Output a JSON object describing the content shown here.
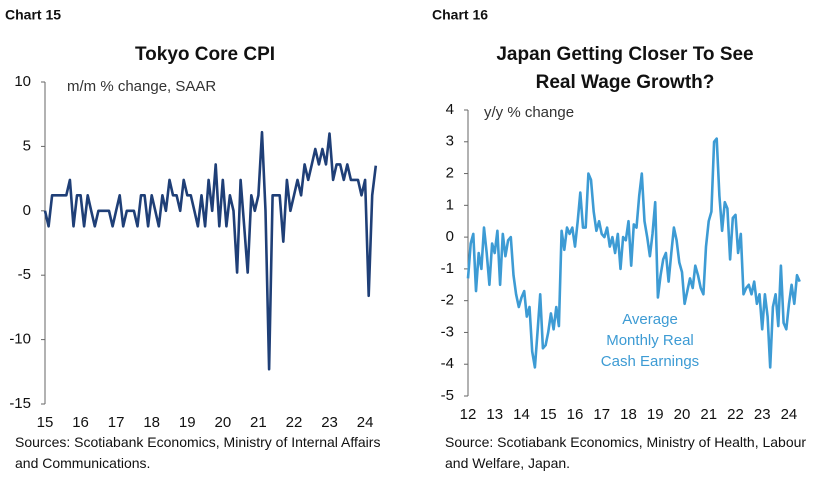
{
  "chart_data": [
    {
      "type": "line",
      "label": "Chart 15",
      "title": [
        "Tokyo Core CPI"
      ],
      "y_label": "m/m % change, SAAR",
      "source": "Sources: Scotiabank Economics, Ministry of Internal Affairs and Communications.",
      "color": "#1f3f77",
      "xlim": [
        15,
        24.7
      ],
      "xticks": [
        15,
        16,
        17,
        18,
        19,
        20,
        21,
        22,
        23,
        24
      ],
      "ylim": [
        -15,
        10
      ],
      "yticks": [
        -15,
        -10,
        -5,
        0,
        5,
        10
      ],
      "x": [
        15.0,
        15.1,
        15.2,
        15.3,
        15.4,
        15.5,
        15.6,
        15.7,
        15.8,
        15.9,
        16.0,
        16.1,
        16.2,
        16.3,
        16.4,
        16.5,
        16.6,
        16.7,
        16.8,
        16.9,
        17.0,
        17.1,
        17.2,
        17.3,
        17.4,
        17.5,
        17.6,
        17.7,
        17.8,
        17.9,
        18.0,
        18.1,
        18.2,
        18.3,
        18.4,
        18.5,
        18.6,
        18.7,
        18.8,
        18.9,
        19.0,
        19.1,
        19.2,
        19.3,
        19.4,
        19.5,
        19.6,
        19.7,
        19.8,
        19.9,
        20.0,
        20.1,
        20.2,
        20.3,
        20.4,
        20.5,
        20.6,
        20.7,
        20.8,
        20.9,
        21.0,
        21.1,
        21.2,
        21.3,
        21.4,
        21.5,
        21.6,
        21.7,
        21.8,
        21.9,
        22.0,
        22.1,
        22.2,
        22.3,
        22.4,
        22.5,
        22.6,
        22.7,
        22.8,
        22.9,
        23.0,
        23.1,
        23.2,
        23.3,
        23.4,
        23.5,
        23.6,
        23.7,
        23.8,
        23.9,
        24.0,
        24.1,
        24.2,
        24.3
      ],
      "values": [
        0,
        -1.2,
        1.2,
        1.2,
        1.2,
        1.2,
        1.2,
        2.4,
        -1.2,
        1.2,
        1.2,
        -1.2,
        1.2,
        0,
        -1.2,
        0,
        0,
        0,
        0,
        -1.2,
        0,
        1.2,
        -1.2,
        0,
        0,
        0,
        -1.2,
        1.2,
        1.2,
        -1.2,
        1.2,
        0,
        -1.2,
        1.2,
        0,
        2.4,
        1.2,
        1.2,
        0,
        2.4,
        1.2,
        1.2,
        0,
        -1.2,
        1.2,
        -1.2,
        2.4,
        0,
        3.6,
        -1.2,
        2.4,
        -1.2,
        1.2,
        0,
        -4.8,
        2.4,
        -1.2,
        -4.8,
        1.2,
        0,
        1.2,
        6.1,
        0,
        -12.3,
        1.2,
        1.2,
        1.2,
        -2.4,
        2.4,
        0,
        1.2,
        2.4,
        1.2,
        3.6,
        2.4,
        3.6,
        4.8,
        3.6,
        4.8,
        3.6,
        6.0,
        2.4,
        3.6,
        3.6,
        2.4,
        3.6,
        2.4,
        2.4,
        2.4,
        1.2,
        2.4,
        -6.6,
        1.2,
        3.5
      ]
    },
    {
      "type": "line",
      "label": "Chart 16",
      "title": [
        "Japan Getting Closer To See",
        "Real Wage Growth?"
      ],
      "y_label": "y/y % change",
      "source": "Source: Scotiabank Economics, Ministry of Health, Labour and Welfare, Japan.",
      "annotation": [
        "Average",
        "Monthly Real",
        "Cash Earnings"
      ],
      "color": "#3d9bd4",
      "xlim": [
        12,
        24.6
      ],
      "xticks": [
        12,
        13,
        14,
        15,
        16,
        17,
        18,
        19,
        20,
        21,
        22,
        23,
        24
      ],
      "ylim": [
        -5,
        4
      ],
      "yticks": [
        -5,
        -4,
        -3,
        -2,
        -1,
        0,
        1,
        2,
        3,
        4
      ],
      "x": [
        12.0,
        12.1,
        12.2,
        12.3,
        12.4,
        12.5,
        12.6,
        12.7,
        12.8,
        12.9,
        13.0,
        13.1,
        13.2,
        13.3,
        13.4,
        13.5,
        13.6,
        13.7,
        13.8,
        13.9,
        14.0,
        14.1,
        14.2,
        14.3,
        14.4,
        14.5,
        14.6,
        14.7,
        14.8,
        14.9,
        15.0,
        15.1,
        15.2,
        15.3,
        15.4,
        15.5,
        15.6,
        15.7,
        15.8,
        15.9,
        16.0,
        16.1,
        16.2,
        16.3,
        16.4,
        16.5,
        16.6,
        16.7,
        16.8,
        16.9,
        17.0,
        17.1,
        17.2,
        17.3,
        17.4,
        17.5,
        17.6,
        17.7,
        17.8,
        17.9,
        18.0,
        18.1,
        18.2,
        18.3,
        18.4,
        18.5,
        18.6,
        18.7,
        18.8,
        18.9,
        19.0,
        19.1,
        19.2,
        19.3,
        19.4,
        19.5,
        19.6,
        19.7,
        19.8,
        19.9,
        20.0,
        20.1,
        20.2,
        20.3,
        20.4,
        20.5,
        20.6,
        20.7,
        20.8,
        20.9,
        21.0,
        21.1,
        21.2,
        21.3,
        21.4,
        21.5,
        21.6,
        21.7,
        21.8,
        21.9,
        22.0,
        22.1,
        22.2,
        22.3,
        22.4,
        22.5,
        22.6,
        22.7,
        22.8,
        22.9,
        23.0,
        23.1,
        23.2,
        23.3,
        23.4,
        23.5,
        23.6,
        23.7,
        23.8,
        23.9,
        24.0,
        24.1,
        24.2,
        24.3,
        24.4
      ],
      "values": [
        -1.3,
        -0.2,
        0.1,
        -1.7,
        -0.5,
        -1.0,
        0.3,
        -0.5,
        -1.5,
        -0.2,
        -0.5,
        0.2,
        -1.5,
        0.1,
        -0.6,
        -0.1,
        0.0,
        -1.2,
        -1.8,
        -2.2,
        -1.9,
        -1.7,
        -2.5,
        -2.2,
        -3.6,
        -4.1,
        -3.0,
        -1.8,
        -3.5,
        -3.4,
        -3.0,
        -2.4,
        -2.9,
        -2.2,
        -2.8,
        0.2,
        -0.4,
        0.3,
        0.1,
        0.3,
        -0.3,
        0.5,
        1.4,
        0.3,
        0.3,
        2.0,
        1.8,
        0.8,
        0.2,
        0.5,
        0.1,
        0.0,
        0.3,
        -0.3,
        0.0,
        -0.5,
        0.1,
        -1.0,
        0.0,
        -0.1,
        0.5,
        -0.9,
        0.4,
        0.3,
        1.3,
        2.0,
        0.5,
        0.0,
        -0.6,
        0.1,
        1.1,
        -1.9,
        -1.2,
        -0.7,
        -0.5,
        -1.4,
        -0.5,
        0.3,
        -0.1,
        -0.8,
        -1.1,
        -2.1,
        -1.7,
        -1.3,
        -1.6,
        -0.9,
        -1.2,
        -1.6,
        -1.8,
        -0.3,
        0.5,
        0.8,
        3.0,
        3.1,
        1.3,
        0.2,
        1.1,
        0.9,
        -0.7,
        0.6,
        0.7,
        -0.5,
        0.1,
        -1.8,
        -1.6,
        -1.5,
        -1.8,
        -1.4,
        -2.1,
        -1.8,
        -2.9,
        -1.8,
        -2.5,
        -4.1,
        -2.2,
        -1.8,
        -2.8,
        -0.9,
        -2.7,
        -2.9,
        -2.1,
        -1.5,
        -2.1,
        -1.2,
        -1.4
      ]
    }
  ]
}
